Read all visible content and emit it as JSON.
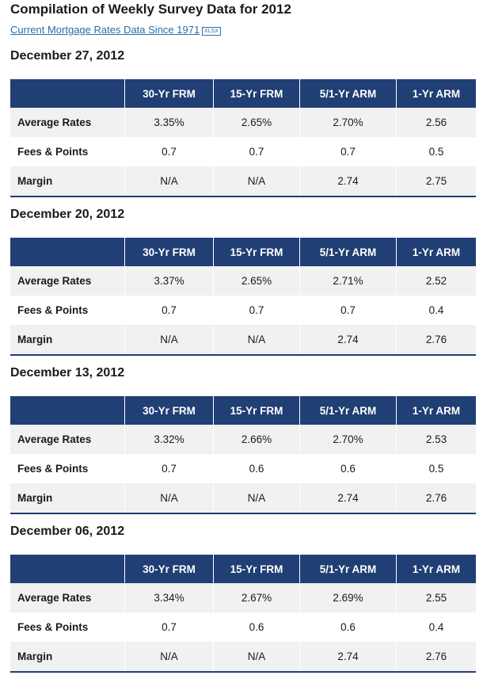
{
  "header": {
    "title": "Compilation of Weekly Survey Data for 2012"
  },
  "link": {
    "text": "Current Mortgage Rates Data Since 1971",
    "badge": "XLSX"
  },
  "sections": [
    {
      "heading": "December 27, 2012",
      "columns": [
        "30-Yr FRM",
        "15-Yr FRM",
        "5/1-Yr ARM",
        "1-Yr ARM"
      ],
      "rows": [
        [
          "Average Rates",
          "3.35%",
          "2.65%",
          "2.70%",
          "2.56"
        ],
        [
          "Fees & Points",
          "0.7",
          "0.7",
          "0.7",
          "0.5"
        ],
        [
          "Margin",
          "N/A",
          "N/A",
          "2.74",
          "2.75"
        ]
      ]
    },
    {
      "heading": "December 20, 2012",
      "columns": [
        "30-Yr FRM",
        "15-Yr FRM",
        "5/1-Yr ARM",
        "1-Yr ARM"
      ],
      "rows": [
        [
          "Average Rates",
          "3.37%",
          "2.65%",
          "2.71%",
          "2.52"
        ],
        [
          "Fees & Points",
          "0.7",
          "0.7",
          "0.7",
          "0.4"
        ],
        [
          "Margin",
          "N/A",
          "N/A",
          "2.74",
          "2.76"
        ]
      ]
    },
    {
      "heading": "December 13, 2012",
      "columns": [
        "30-Yr FRM",
        "15-Yr FRM",
        "5/1-Yr ARM",
        "1-Yr ARM"
      ],
      "rows": [
        [
          "Average Rates",
          "3.32%",
          "2.66%",
          "2.70%",
          "2.53"
        ],
        [
          "Fees & Points",
          "0.7",
          "0.6",
          "0.6",
          "0.5"
        ],
        [
          "Margin",
          "N/A",
          "N/A",
          "2.74",
          "2.76"
        ]
      ]
    },
    {
      "heading": "December 06, 2012",
      "columns": [
        "30-Yr FRM",
        "15-Yr FRM",
        "5/1-Yr ARM",
        "1-Yr ARM"
      ],
      "rows": [
        [
          "Average Rates",
          "3.34%",
          "2.67%",
          "2.69%",
          "2.55"
        ],
        [
          "Fees & Points",
          "0.7",
          "0.6",
          "0.6",
          "0.4"
        ],
        [
          "Margin",
          "N/A",
          "N/A",
          "2.74",
          "2.76"
        ]
      ]
    }
  ]
}
